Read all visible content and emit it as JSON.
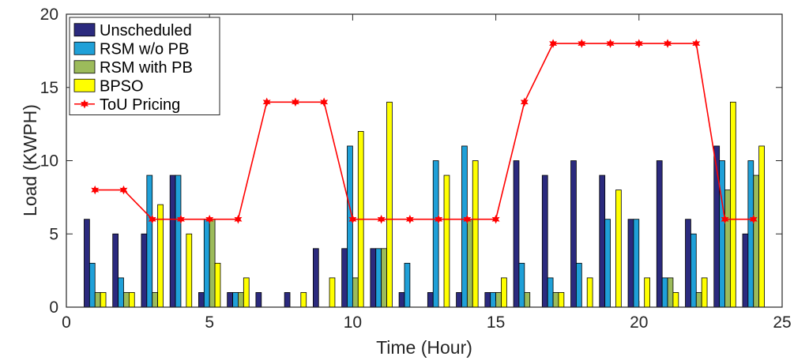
{
  "chart_data": {
    "type": "bar",
    "xlabel": "Time (Hour)",
    "ylabel": "Load (KWPH)",
    "xlim": [
      0,
      25
    ],
    "ylim": [
      0,
      20
    ],
    "xticks": [
      "0",
      "5",
      "10",
      "15",
      "20",
      "25"
    ],
    "yticks": [
      "0",
      "5",
      "10",
      "15",
      "20"
    ],
    "grid": false,
    "legend_position": "top-left",
    "categories": [
      1,
      2,
      3,
      4,
      5,
      6,
      7,
      8,
      9,
      10,
      11,
      12,
      13,
      14,
      15,
      16,
      17,
      18,
      19,
      20,
      21,
      22,
      23,
      24
    ],
    "series": [
      {
        "name": "Unscheduled",
        "color": "#2b2a7e",
        "values": [
          6,
          5,
          5,
          9,
          1,
          1,
          1,
          1,
          4,
          4,
          4,
          1,
          1,
          1,
          1,
          10,
          9,
          10,
          9,
          6,
          10,
          6,
          11,
          5
        ]
      },
      {
        "name": "RSM w/o PB",
        "color": "#1fa0d8",
        "values": [
          3,
          2,
          9,
          9,
          6,
          1,
          0,
          0,
          0,
          11,
          4,
          3,
          10,
          11,
          1,
          3,
          2,
          3,
          6,
          6,
          2,
          5,
          10,
          10
        ]
      },
      {
        "name": "RSM with PB",
        "color": "#9cbb5b",
        "values": [
          1,
          1,
          1,
          0,
          6,
          1,
          0,
          0,
          0,
          2,
          4,
          0,
          0,
          6,
          1,
          1,
          1,
          0,
          0,
          0,
          2,
          1,
          8,
          9
        ]
      },
      {
        "name": "BPSO",
        "color": "#ffff00",
        "values": [
          1,
          1,
          7,
          5,
          3,
          2,
          0,
          1,
          2,
          12,
          14,
          0,
          9,
          10,
          2,
          0,
          1,
          2,
          8,
          2,
          1,
          2,
          14,
          11
        ]
      }
    ],
    "line_series": {
      "name": "ToU Pricing",
      "color": "#ff0000",
      "x": [
        1,
        2,
        3,
        4,
        5,
        6,
        7,
        8,
        9,
        10,
        11,
        12,
        13,
        14,
        15,
        16,
        17,
        18,
        19,
        20,
        21,
        22,
        23,
        24
      ],
      "values": [
        8,
        8,
        6,
        6,
        6,
        6,
        14,
        14,
        14,
        6,
        6,
        6,
        6,
        6,
        6,
        14,
        18,
        18,
        18,
        18,
        18,
        18,
        6,
        6
      ]
    }
  }
}
